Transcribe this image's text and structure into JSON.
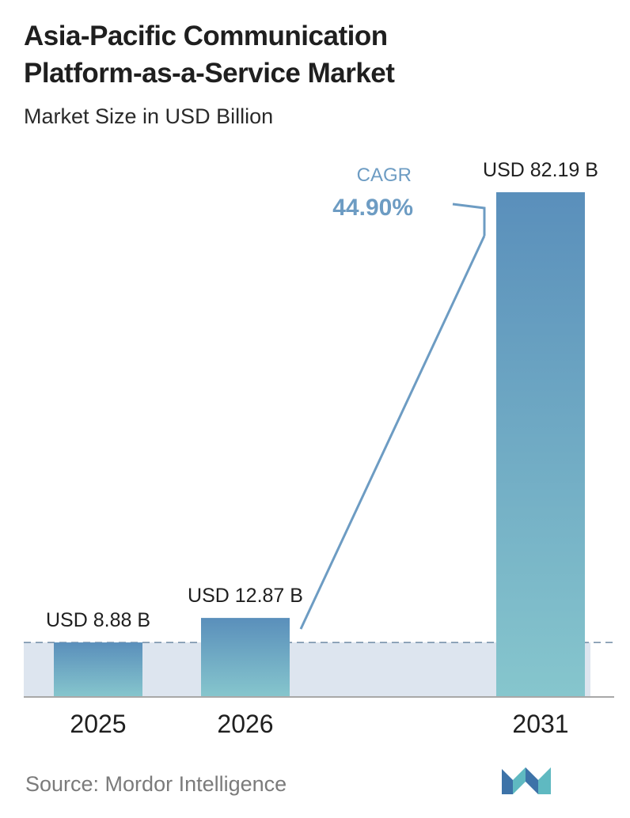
{
  "header": {
    "title_line1": "Asia-Pacific Communication",
    "title_line2": "Platform-as-a-Service Market",
    "subtitle": "Market Size in USD Billion"
  },
  "annotation": {
    "cagr_label": "CAGR",
    "cagr_value": "44.90%"
  },
  "footer": {
    "source": "Source:  Mordor Intelligence"
  },
  "colors": {
    "bar_top": "#5a8fbb",
    "bar_bottom": "#86c6cd",
    "band": "#dde5ef",
    "arrow": "#6d9cc3",
    "cagr_text": "#6d9cc3",
    "baseline": "#6f8aa5"
  },
  "chart_data": {
    "type": "bar",
    "title": "Asia-Pacific Communication Platform-as-a-Service Market",
    "subtitle": "Market Size in USD Billion",
    "categories": [
      "2025",
      "2026",
      "2031"
    ],
    "values": [
      8.88,
      12.87,
      82.19
    ],
    "data_labels": [
      "USD 8.88 B",
      "USD 12.87 B",
      "USD 82.19 B"
    ],
    "ylim": [
      0,
      82.19
    ],
    "grid": false,
    "legend": "none",
    "annotation": "CAGR 44.90%"
  }
}
